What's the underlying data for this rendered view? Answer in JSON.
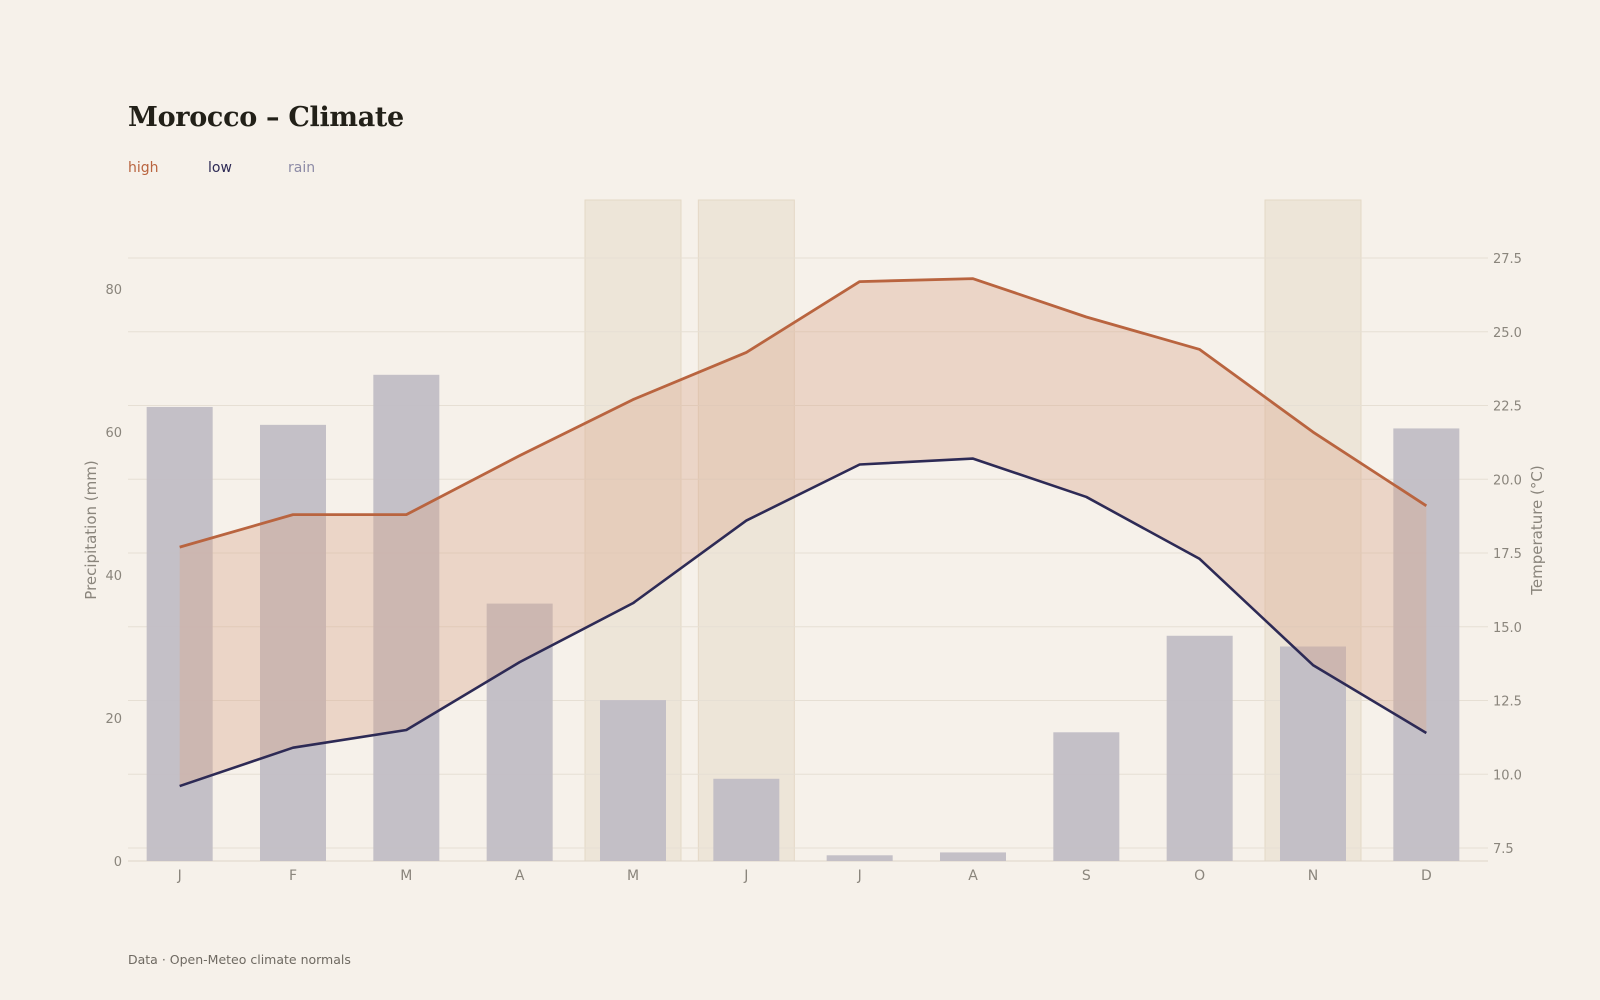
{
  "title": "Morocco – Climate",
  "legend": {
    "high": "high",
    "low": "low",
    "rain": "rain"
  },
  "source": "Data · Open-Meteo climate normals",
  "colors": {
    "high": "#b9643f",
    "low": "#2d2a55",
    "rain": "#c1bdc5",
    "band": "#e9d6cb",
    "highlight": "#ede5d8",
    "grid": "#e6dfd4",
    "axis_text": "#8a857c"
  },
  "chart_data": {
    "type": "bar+line",
    "title": "Morocco – Climate",
    "categories": [
      "J",
      "F",
      "M",
      "A",
      "M",
      "J",
      "J",
      "A",
      "S",
      "O",
      "N",
      "D"
    ],
    "series": [
      {
        "name": "rain",
        "axis": "left",
        "type": "bar",
        "values": [
          63.5,
          61,
          68,
          36,
          22.5,
          11.5,
          0.8,
          1.2,
          18,
          31.5,
          30,
          60.5
        ]
      },
      {
        "name": "high",
        "axis": "right",
        "type": "line",
        "values": [
          17.7,
          18.8,
          18.8,
          20.8,
          22.7,
          24.3,
          26.7,
          26.8,
          25.5,
          24.4,
          21.6,
          19.1
        ]
      },
      {
        "name": "low",
        "axis": "right",
        "type": "line",
        "values": [
          9.6,
          10.9,
          11.5,
          13.8,
          15.8,
          18.6,
          20.5,
          20.7,
          19.4,
          17.3,
          13.7,
          11.4
        ]
      }
    ],
    "band_between": [
      "low",
      "high"
    ],
    "highlighted_months": [
      4,
      5,
      10
    ],
    "y_left": {
      "label": "Precipitation (mm)",
      "ticks": [
        0,
        20,
        40,
        60,
        80
      ],
      "range": [
        0,
        80
      ]
    },
    "y_right": {
      "label": "Temperature (°C)",
      "ticks": [
        7.5,
        10.0,
        12.5,
        15.0,
        17.5,
        20.0,
        22.5,
        25.0,
        27.5
      ],
      "range": [
        7.5,
        27.5
      ]
    },
    "grid": true
  }
}
